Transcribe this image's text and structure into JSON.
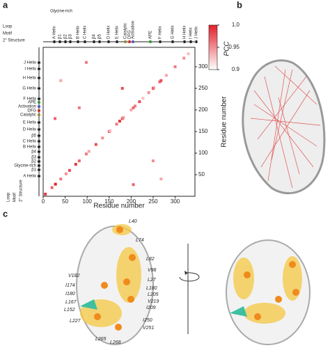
{
  "panels": [
    "a",
    "b",
    "c"
  ],
  "chart_data": {
    "type": "scatter",
    "x_label": "Residue number",
    "y_label": "Residue number",
    "xlim": [
      0,
      345
    ],
    "ylim": [
      0,
      345
    ],
    "xticks": [
      0,
      50,
      100,
      150,
      200,
      250,
      300
    ],
    "yticks": [
      50,
      100,
      150,
      200,
      250,
      300
    ],
    "clim": [
      0.9,
      1.0
    ],
    "cticks": [
      0.9,
      0.95,
      {
        "value": 1,
        "label": "1.0"
      }
    ],
    "color_label": "PCC",
    "color": "#e3202a",
    "x": [
      5,
      20,
      28,
      40,
      52,
      60,
      74,
      82,
      98,
      104,
      120,
      135,
      150,
      152,
      167,
      174,
      180,
      182,
      200,
      205,
      209,
      219,
      227,
      240,
      250,
      251,
      265,
      268,
      280,
      300,
      320,
      330,
      27,
      82,
      180,
      205,
      250,
      40,
      98,
      268
    ],
    "y": [
      5,
      20,
      28,
      40,
      52,
      60,
      74,
      82,
      98,
      104,
      120,
      135,
      150,
      152,
      167,
      174,
      180,
      182,
      200,
      205,
      209,
      219,
      227,
      240,
      250,
      251,
      265,
      268,
      280,
      300,
      320,
      330,
      180,
      205,
      250,
      27,
      82,
      268,
      310,
      40
    ],
    "values": [
      0.99,
      0.97,
      1,
      0.96,
      0.95,
      0.98,
      0.99,
      0.97,
      0.96,
      0.94,
      0.98,
      0.95,
      0.97,
      0.93,
      0.96,
      0.99,
      0.98,
      0.95,
      0.94,
      0.97,
      0.96,
      0.98,
      0.93,
      0.95,
      0.99,
      0.96,
      0.97,
      0.98,
      0.94,
      0.96,
      0.95,
      0.93,
      0.97,
      0.96,
      0.98,
      0.97,
      0.95,
      0.94,
      0.96,
      0.94
    ]
  },
  "structure": {
    "row_titles": [
      "Loop",
      "Motif",
      "2° Structure"
    ],
    "glycine_rich": "Glycine-rich",
    "top_labels": [
      "A Helix",
      "β1",
      "β2",
      "β3",
      "B Helix",
      "C Helix",
      "β4",
      "β5",
      "D Helix",
      "E Helix",
      "Catalytic",
      "DFG",
      "Activation",
      "APE",
      "F Helix",
      "G Helix",
      "H Helix",
      "I Helix",
      "J Helix"
    ],
    "left_labels": [
      "J Helix",
      "I Helix",
      "H Helix",
      "G Helix",
      "F Helix",
      "APE",
      "Activation",
      "DFG",
      "Catalytic",
      "E Helix",
      "D Helix",
      "β5",
      "C Helix",
      "B Helix",
      "β4",
      "β3",
      "β2",
      "Glycine-rich",
      "β1",
      "A Helix"
    ]
  },
  "panel_c": {
    "residue_labels": [
      "L40",
      "L74",
      "L82",
      "V98",
      "L27",
      "L180",
      "L205",
      "V219",
      "I209",
      "I250",
      "V251",
      "L268",
      "L265",
      "L227",
      "L152",
      "L167",
      "I180",
      "I174",
      "V182"
    ]
  }
}
